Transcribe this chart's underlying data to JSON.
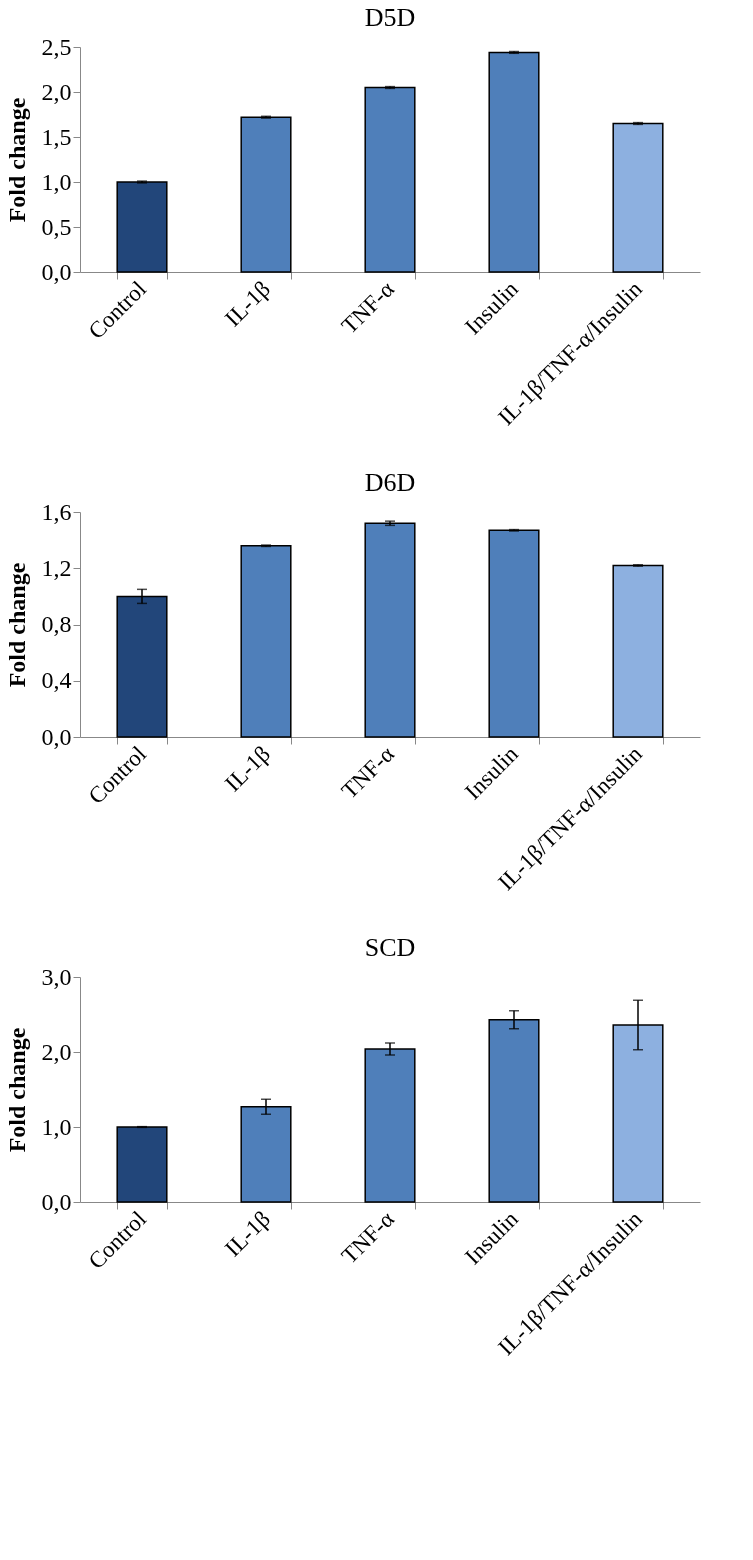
{
  "chart_data": [
    {
      "type": "bar",
      "title": "D5D",
      "ylabel": "Fold change",
      "categories": [
        "Control",
        "IL-1β",
        "TNF-α",
        "Insulin",
        "IL-1β/TNF-α/Insulin"
      ],
      "values": [
        1.0,
        1.72,
        2.05,
        2.44,
        1.65
      ],
      "errors": [
        0.01,
        0.01,
        0.01,
        0.01,
        0.01
      ],
      "colors": [
        "#22467a",
        "#4f7fba",
        "#4f7fba",
        "#4f7fba",
        "#8db0e0"
      ],
      "ylim": [
        0,
        2.5
      ],
      "yticks": [
        {
          "value": 0,
          "label": "0,0"
        },
        {
          "value": 0.5,
          "label": "0,5"
        },
        {
          "value": 1.0,
          "label": "1,0"
        },
        {
          "value": 1.5,
          "label": "1,5"
        },
        {
          "value": 2.0,
          "label": "2,0"
        },
        {
          "value": 2.5,
          "label": "2,5"
        }
      ],
      "grid": false
    },
    {
      "type": "bar",
      "title": "D6D",
      "ylabel": "Fold change",
      "categories": [
        "Control",
        "IL-1β",
        "TNF-α",
        "Insulin",
        "IL-1β/TNF-α/Insulin"
      ],
      "values": [
        1.0,
        1.36,
        1.52,
        1.47,
        1.22
      ],
      "errors": [
        0.05,
        0.005,
        0.015,
        0.005,
        0.005
      ],
      "colors": [
        "#22467a",
        "#4f7fba",
        "#4f7fba",
        "#4f7fba",
        "#8db0e0"
      ],
      "ylim": [
        0,
        1.6
      ],
      "yticks": [
        {
          "value": 0,
          "label": "0,0"
        },
        {
          "value": 0.4,
          "label": "0,4"
        },
        {
          "value": 0.8,
          "label": "0,8"
        },
        {
          "value": 1.2,
          "label": "1,2"
        },
        {
          "value": 1.6,
          "label": "1,6"
        }
      ],
      "grid": false
    },
    {
      "type": "bar",
      "title": "SCD",
      "ylabel": "Fold change",
      "categories": [
        "Control",
        "IL-1β",
        "TNF-α",
        "Insulin",
        "IL-1β/TNF-α/Insulin"
      ],
      "values": [
        1.0,
        1.27,
        2.04,
        2.43,
        2.36
      ],
      "errors": [
        0.005,
        0.1,
        0.08,
        0.12,
        0.33
      ],
      "colors": [
        "#22467a",
        "#4f7fba",
        "#4f7fba",
        "#4f7fba",
        "#8db0e0"
      ],
      "ylim": [
        0,
        3.0
      ],
      "yticks": [
        {
          "value": 0,
          "label": "0,0"
        },
        {
          "value": 1.0,
          "label": "1,0"
        },
        {
          "value": 2.0,
          "label": "2,0"
        },
        {
          "value": 3.0,
          "label": "3,0"
        }
      ],
      "grid": false
    }
  ]
}
